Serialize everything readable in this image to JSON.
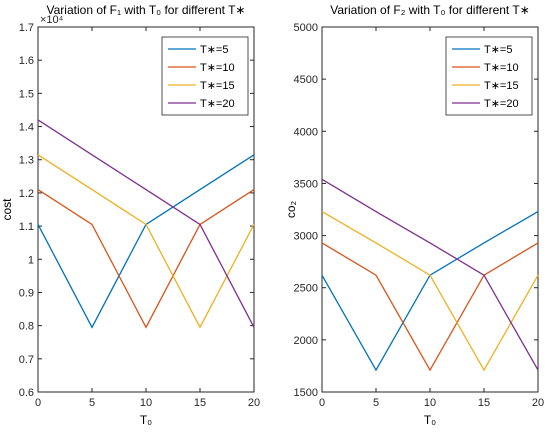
{
  "chart_data": [
    {
      "type": "line",
      "title": "Variation of F₁ with T₀ for different T∗",
      "xlabel": "T₀",
      "ylabel": "cost",
      "exponent_label": "×10⁴",
      "xlim": [
        0,
        20
      ],
      "ylim": [
        0.6,
        1.7
      ],
      "xticks": [
        0,
        5,
        10,
        15,
        20
      ],
      "yticks": [
        0.6,
        0.7,
        0.8,
        0.9,
        1,
        1.1,
        1.2,
        1.3,
        1.4,
        1.5,
        1.6,
        1.7
      ],
      "ytick_labels": [
        "0.6",
        "0.7",
        "0.8",
        "0.9",
        "1",
        "1.1",
        "1.2",
        "1.3",
        "1.4",
        "1.5",
        "1.6",
        "1.7"
      ],
      "legend_position": "top-right",
      "series": [
        {
          "name": "T∗=5",
          "x": [
            0,
            5,
            10,
            15,
            20
          ],
          "y": [
            1.105,
            0.795,
            1.105,
            1.21,
            1.315
          ]
        },
        {
          "name": "T∗=10",
          "x": [
            0,
            5,
            10,
            15,
            20
          ],
          "y": [
            1.21,
            1.105,
            0.795,
            1.105,
            1.21
          ]
        },
        {
          "name": "T∗=15",
          "x": [
            0,
            5,
            10,
            15,
            20
          ],
          "y": [
            1.315,
            1.21,
            1.105,
            0.795,
            1.105
          ]
        },
        {
          "name": "T∗=20",
          "x": [
            0,
            5,
            10,
            15,
            20
          ],
          "y": [
            1.42,
            1.315,
            1.21,
            1.105,
            0.795
          ]
        }
      ]
    },
    {
      "type": "line",
      "title": "Variation of F₂ with T₀ for different T∗",
      "xlabel": "T₀",
      "ylabel": "co₂",
      "xlim": [
        0,
        20
      ],
      "ylim": [
        1500,
        5000
      ],
      "xticks": [
        0,
        5,
        10,
        15,
        20
      ],
      "yticks": [
        1500,
        2000,
        2500,
        3000,
        3500,
        4000,
        4500,
        5000
      ],
      "ytick_labels": [
        "1500",
        "2000",
        "2500",
        "3000",
        "3500",
        "4000",
        "4500",
        "5000"
      ],
      "legend_position": "top-right",
      "series": [
        {
          "name": "T∗=5",
          "x": [
            0,
            5,
            10,
            15,
            20
          ],
          "y": [
            2620,
            1710,
            2620,
            2930,
            3230
          ]
        },
        {
          "name": "T∗=10",
          "x": [
            0,
            5,
            10,
            15,
            20
          ],
          "y": [
            2930,
            2620,
            1710,
            2620,
            2930
          ]
        },
        {
          "name": "T∗=15",
          "x": [
            0,
            5,
            10,
            15,
            20
          ],
          "y": [
            3230,
            2930,
            2620,
            1710,
            2620
          ]
        },
        {
          "name": "T∗=20",
          "x": [
            0,
            5,
            10,
            15,
            20
          ],
          "y": [
            3540,
            3230,
            2930,
            2620,
            1710
          ]
        }
      ]
    }
  ],
  "colors": {
    "series": [
      "#0072BD",
      "#D95319",
      "#EDB120",
      "#7E2F8E"
    ],
    "axis": "#262626"
  }
}
